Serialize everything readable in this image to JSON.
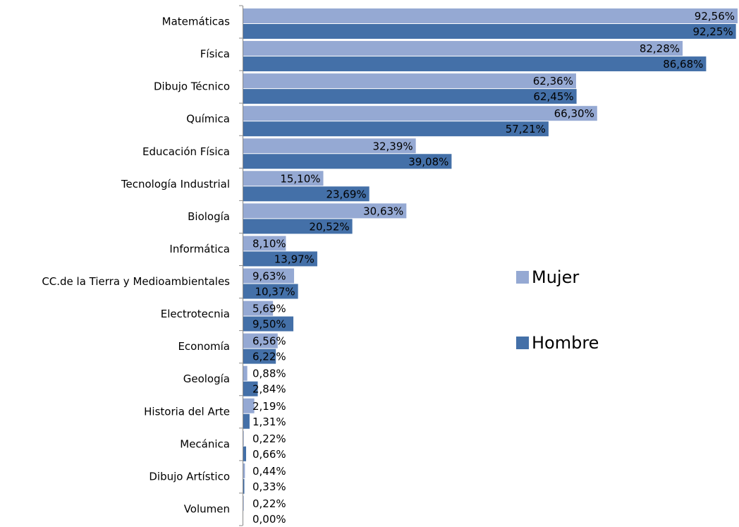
{
  "chart_data": {
    "type": "bar",
    "orientation": "horizontal",
    "categories": [
      "Matemáticas",
      "Física",
      "Dibujo Técnico",
      "Química",
      "Educación Física",
      "Tecnología Industrial",
      "Biología",
      "Informática",
      "CC.de la Tierra y Medioambientales",
      "Electrotecnia",
      "Economía",
      "Geología",
      "Historia del Arte",
      "Mecánica",
      "Dibujo Artístico",
      "Volumen"
    ],
    "series": [
      {
        "name": "Mujer",
        "color": "#95a9d3",
        "values": [
          92.56,
          82.28,
          62.36,
          66.3,
          32.39,
          15.1,
          30.63,
          8.1,
          9.63,
          5.69,
          6.56,
          0.88,
          2.19,
          0.22,
          0.44,
          0.22
        ],
        "value_labels": [
          "92,56%",
          "82,28%",
          "62,36%",
          "66,30%",
          "32,39%",
          "15,10%",
          "30,63%",
          "8,10%",
          "9,63%",
          "5,69%",
          "6,56%",
          "0,88%",
          "2,19%",
          "0,22%",
          "0,44%",
          "0,22%"
        ]
      },
      {
        "name": "Hombre",
        "color": "#4470a8",
        "values": [
          92.25,
          86.68,
          62.45,
          57.21,
          39.08,
          23.69,
          20.52,
          13.97,
          10.37,
          9.5,
          6.22,
          2.84,
          1.31,
          0.66,
          0.33,
          0.0
        ],
        "value_labels": [
          "92,25%",
          "86,68%",
          "62,45%",
          "57,21%",
          "39,08%",
          "23,69%",
          "20,52%",
          "13,97%",
          "10,37%",
          "9,50%",
          "6,22%",
          "2,84%",
          "1,31%",
          "0,66%",
          "0,33%",
          "0,00%"
        ]
      }
    ],
    "legend": "right"
  }
}
